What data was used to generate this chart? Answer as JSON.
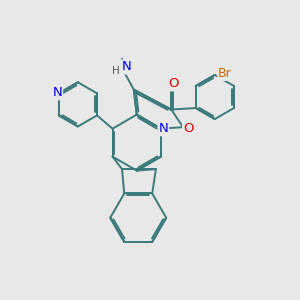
{
  "background_color": "#e8e8e8",
  "bond_color": "#3a7a7a",
  "bond_width": 1.4,
  "atom_colors": {
    "N": "#0000ee",
    "O": "#dd0000",
    "Br": "#cc6600",
    "C": "#3a7a7a",
    "H": "#555555"
  },
  "font_size": 8.5
}
